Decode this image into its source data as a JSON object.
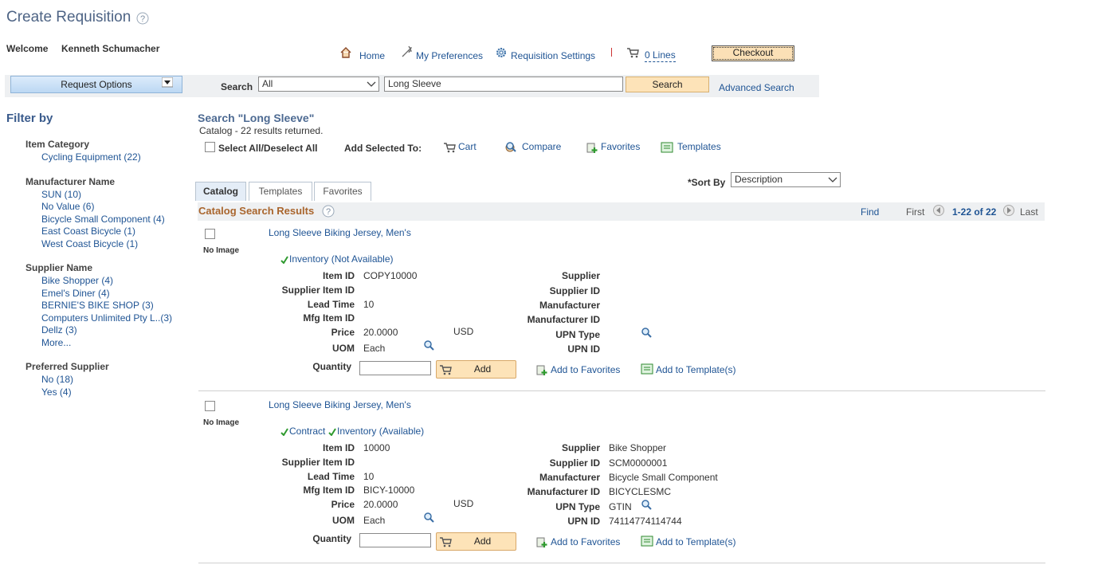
{
  "header": {
    "title": "Create Requisition",
    "welcome": "Welcome",
    "user": "Kenneth Schumacher"
  },
  "nav": {
    "home": "Home",
    "preferences": "My Preferences",
    "settings": "Requisition Settings",
    "lines": "0 Lines",
    "checkout": "Checkout"
  },
  "search": {
    "request_options": "Request Options",
    "label": "Search",
    "scope": "All",
    "query": "Long Sleeve",
    "button": "Search",
    "advanced": "Advanced Search"
  },
  "filters": {
    "title": "Filter by",
    "groups": [
      {
        "name": "Item Category",
        "items": [
          "Cycling Equipment (22)"
        ]
      },
      {
        "name": "Manufacturer Name",
        "items": [
          "SUN (10)",
          "No Value (6)",
          "Bicycle Small Component (4)",
          "East Coast Bicycle (1)",
          "West Coast Bicycle (1)"
        ]
      },
      {
        "name": "Supplier Name",
        "items": [
          "Bike Shopper (4)",
          "Emel's Diner (4)",
          "BERNIE'S BIKE SHOP (3)",
          "Computers Unlimited Pty L..(3)",
          "Dellz (3)",
          "More..."
        ]
      },
      {
        "name": "Preferred Supplier",
        "items": [
          "No (18)",
          "Yes (4)"
        ]
      }
    ]
  },
  "results": {
    "heading": "Search \"Long Sleeve\"",
    "summary": "Catalog - 22 results returned.",
    "select_all": "Select All/Deselect All",
    "add_selected": "Add Selected To:",
    "targets": [
      "Cart",
      "Compare",
      "Favorites",
      "Templates"
    ],
    "sort_label": "*Sort By",
    "sort_value": "Description",
    "tabs": [
      "Catalog",
      "Templates",
      "Favorites"
    ],
    "section_title": "Catalog Search Results",
    "find": "Find",
    "first": "First",
    "range": "1-22 of 22",
    "last": "Last"
  },
  "items": [
    {
      "title": "Long Sleeve Biking Jersey, Men's",
      "image": "No Image",
      "status": [
        "Inventory (Not Available)"
      ],
      "details": [
        {
          "label": "Item ID",
          "value": "COPY10000"
        },
        {
          "label": "Supplier Item ID"
        },
        {
          "label": "Lead Time",
          "value": "10"
        },
        {
          "label": "Mfg Item ID"
        },
        {
          "label": "Price",
          "value": "20.0000",
          "currency": "USD"
        },
        {
          "label": "UOM",
          "value": "Each"
        }
      ],
      "supplier_details": [
        {
          "label": "Supplier"
        },
        {
          "label": "Supplier ID"
        },
        {
          "label": "Manufacturer"
        },
        {
          "label": "Manufacturer ID"
        },
        {
          "label": "UPN Type"
        },
        {
          "label": "UPN ID"
        }
      ],
      "quantity_label": "Quantity",
      "add": "Add",
      "add_favorites": "Add to Favorites",
      "add_template": "Add to Template(s)"
    },
    {
      "title": "Long Sleeve Biking Jersey, Men's",
      "image": "No Image",
      "status": [
        "Contract",
        "Inventory (Available)"
      ],
      "details": [
        {
          "label": "Item ID",
          "value": "10000"
        },
        {
          "label": "Supplier Item ID"
        },
        {
          "label": "Lead Time",
          "value": "10"
        },
        {
          "label": "Mfg Item ID",
          "value": "BICY-10000"
        },
        {
          "label": "Price",
          "value": "20.0000",
          "currency": "USD"
        },
        {
          "label": "UOM",
          "value": "Each"
        }
      ],
      "supplier_details": [
        {
          "label": "Supplier",
          "value": "Bike Shopper"
        },
        {
          "label": "Supplier ID",
          "value": "SCM0000001"
        },
        {
          "label": "Manufacturer",
          "value": "Bicycle Small Component"
        },
        {
          "label": "Manufacturer ID",
          "value": "BICYCLESMC"
        },
        {
          "label": "UPN Type",
          "value": "GTIN"
        },
        {
          "label": "UPN ID",
          "value": "74114774114744"
        }
      ],
      "quantity_label": "Quantity",
      "add": "Add",
      "add_favorites": "Add to Favorites",
      "add_template": "Add to Template(s)"
    }
  ]
}
